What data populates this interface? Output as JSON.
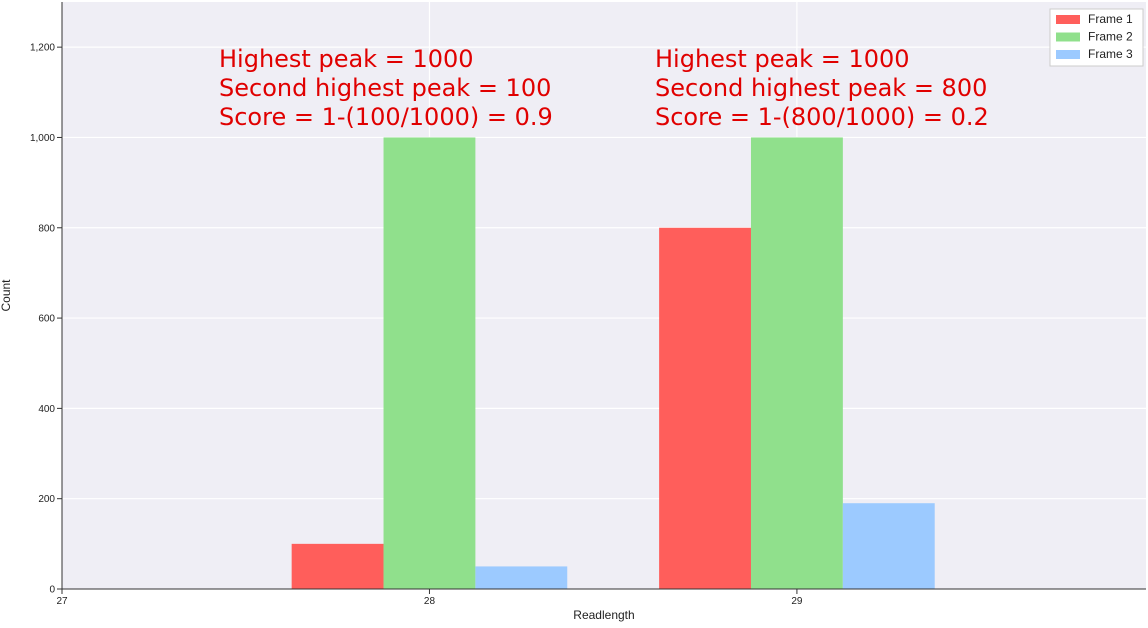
{
  "chart_data": {
    "type": "bar",
    "xlabel": "Readlength",
    "ylabel": "Count",
    "x_ticks": [
      "27",
      "28",
      "29"
    ],
    "y_ticks": [
      "0",
      "200",
      "400",
      "600",
      "800",
      "1,000",
      "1,200"
    ],
    "ylim": [
      0,
      1300
    ],
    "xlim": [
      27,
      29.95
    ],
    "grid": true,
    "legend_position": "top-right",
    "categories": [
      28,
      29
    ],
    "series": [
      {
        "name": "Frame 1",
        "color": "#ff5e5b",
        "values": [
          100,
          800
        ]
      },
      {
        "name": "Frame 2",
        "color": "#90e08c",
        "values": [
          1000,
          1000
        ]
      },
      {
        "name": "Frame 3",
        "color": "#9ccaff",
        "values": [
          50,
          190
        ]
      }
    ],
    "annotations": [
      {
        "lines": [
          "Highest peak = 1000",
          "Second highest peak = 100",
          "Score = 1-(100/1000) = 0.9"
        ],
        "color": "#e00000"
      },
      {
        "lines": [
          "Highest peak = 1000",
          "Second highest peak = 800",
          "Score = 1-(800/1000) = 0.2"
        ],
        "color": "#e00000"
      }
    ]
  }
}
